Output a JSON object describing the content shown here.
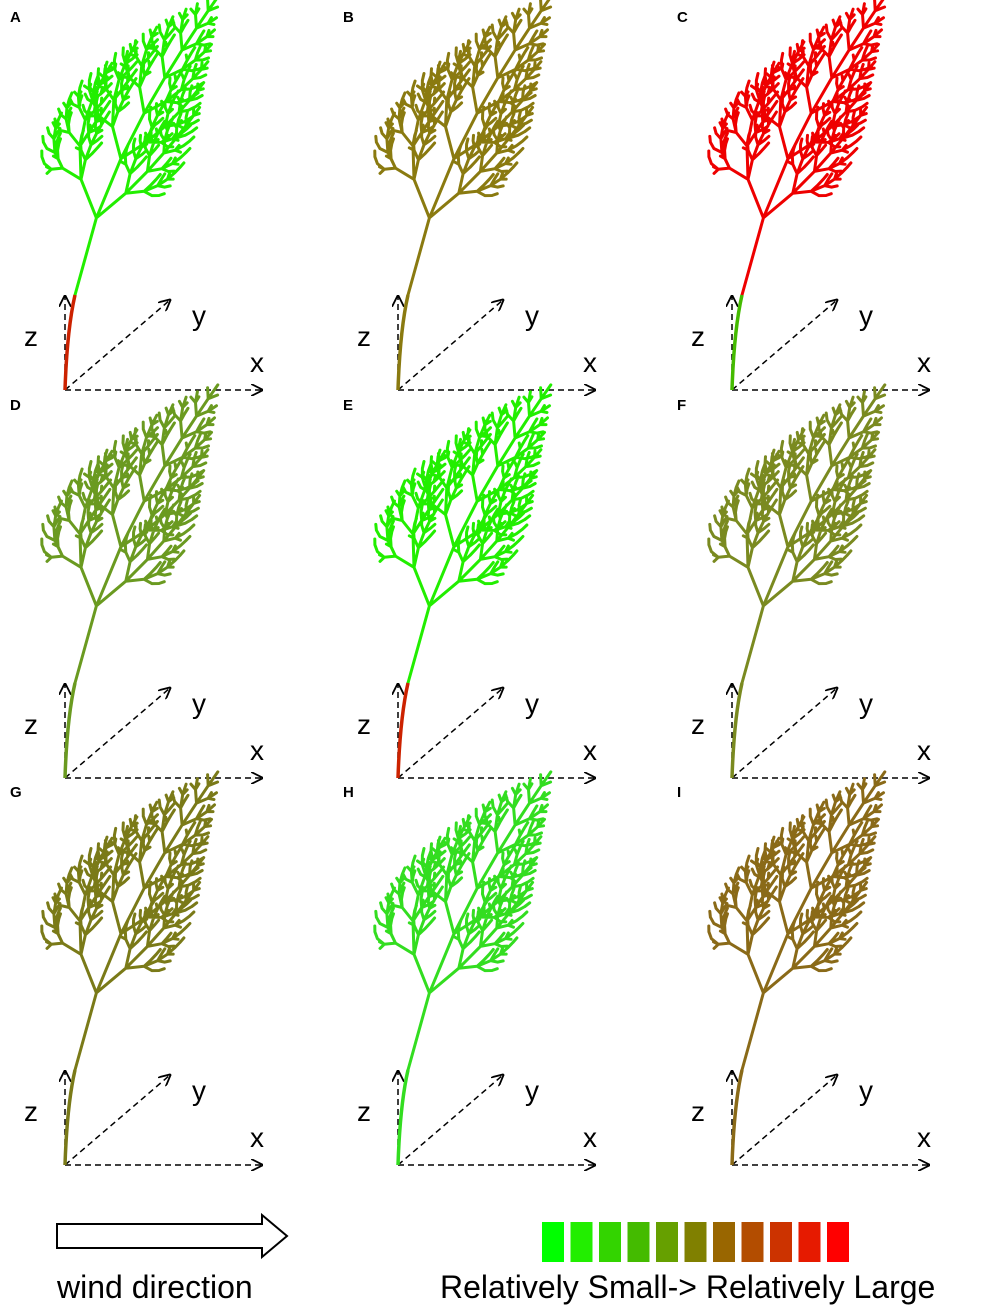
{
  "panels": [
    {
      "label": "A",
      "color": "#22ee00",
      "trunk_color": "#cc2200"
    },
    {
      "label": "B",
      "color": "#8a7a10",
      "trunk_color": "#8a7a10"
    },
    {
      "label": "C",
      "color": "#ee0000",
      "trunk_color": "#44bb00"
    },
    {
      "label": "D",
      "color": "#6a9a20",
      "trunk_color": "#6a9a20"
    },
    {
      "label": "E",
      "color": "#22ee00",
      "trunk_color": "#cc2200"
    },
    {
      "label": "F",
      "color": "#7a8a20",
      "trunk_color": "#7a8a20"
    },
    {
      "label": "G",
      "color": "#7a7a18",
      "trunk_color": "#7a7a18"
    },
    {
      "label": "H",
      "color": "#33dd20",
      "trunk_color": "#33dd20"
    },
    {
      "label": "I",
      "color": "#8a6a18",
      "trunk_color": "#8a6a18"
    }
  ],
  "axes": {
    "x": "x",
    "y": "y",
    "z": "z"
  },
  "legend": {
    "wind_direction": "wind direction",
    "scale_label": "Relatively Small-> Relatively Large",
    "scale_colors": [
      "#00ff00",
      "#22ee00",
      "#33d400",
      "#44bb00",
      "#66a000",
      "#808000",
      "#996600",
      "#b34d00",
      "#cc3300",
      "#e61a00",
      "#ff0000"
    ]
  }
}
